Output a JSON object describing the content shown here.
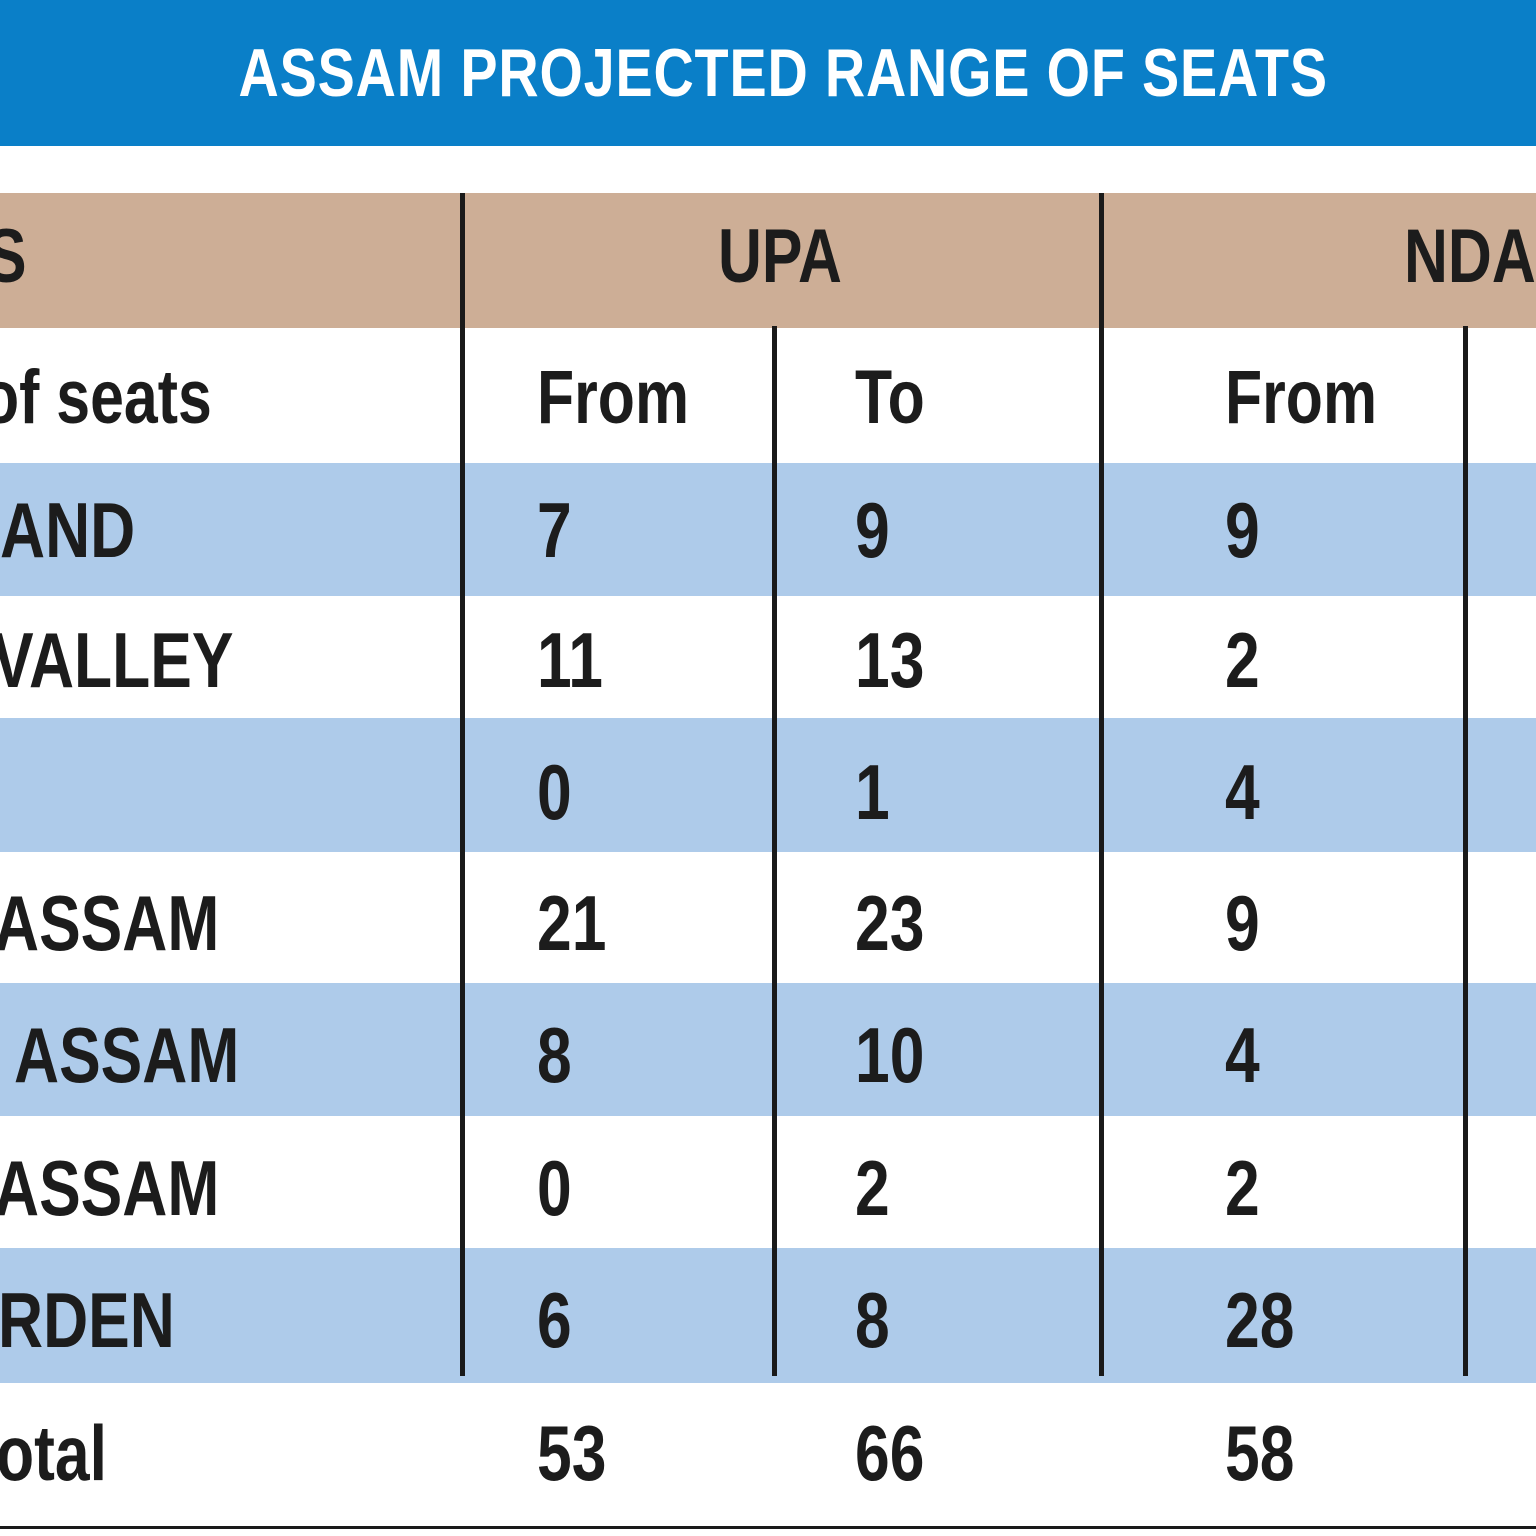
{
  "title": "ASSAM PROJECTED RANGE OF SEATS",
  "colors": {
    "banner": "#0a7fc8",
    "group_header": "#cdae96",
    "row_stripe": "#aecbea",
    "text": "#1c1c1c"
  },
  "table": {
    "group_headers": {
      "region": "S",
      "upa": "UPA",
      "nda": "NDA"
    },
    "sub_headers": {
      "region": "of seats",
      "upa_from": "From",
      "upa_to": "To",
      "nda_from": "From"
    },
    "rows": [
      {
        "region": "AND",
        "upa_from": "7",
        "upa_to": "9",
        "nda_from": "9"
      },
      {
        "region": "VALLEY",
        "upa_from": "11",
        "upa_to": "13",
        "nda_from": "2"
      },
      {
        "region": "",
        "upa_from": "0",
        "upa_to": "1",
        "nda_from": "4"
      },
      {
        "region": "ASSAM",
        "upa_from": "21",
        "upa_to": "23",
        "nda_from": "9"
      },
      {
        "region": " ASSAM",
        "upa_from": "8",
        "upa_to": "10",
        "nda_from": "4"
      },
      {
        "region": "ASSAM",
        "upa_from": "0",
        "upa_to": "2",
        "nda_from": "2"
      },
      {
        "region": "RDEN",
        "upa_from": "6",
        "upa_to": "8",
        "nda_from": "28"
      }
    ],
    "total": {
      "region": "otal",
      "upa_from": "53",
      "upa_to": "66",
      "nda_from": "58"
    }
  }
}
